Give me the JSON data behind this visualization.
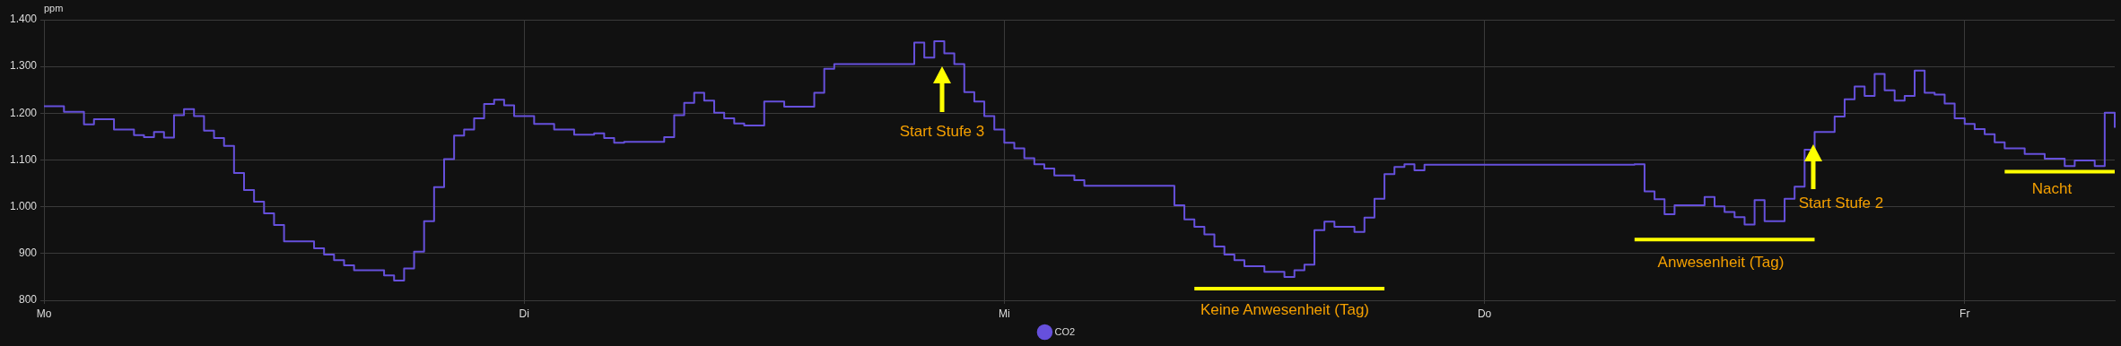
{
  "chart_data": {
    "type": "step",
    "ylabel": "ppm",
    "legend": "bottom",
    "grid": true,
    "categories": [
      "Mo",
      null,
      null,
      null,
      null,
      null,
      null,
      null,
      null,
      null,
      null,
      null,
      null,
      null,
      null,
      null,
      null,
      null,
      null,
      null,
      null,
      null,
      null,
      null,
      null,
      null,
      null,
      null,
      null,
      null,
      null,
      null,
      null,
      null,
      null,
      null,
      null,
      null,
      null,
      null,
      null,
      null,
      null,
      null,
      null,
      null,
      null,
      null,
      "Di",
      null,
      null,
      null,
      null,
      null,
      null,
      null,
      null,
      null,
      null,
      null,
      null,
      null,
      null,
      null,
      null,
      null,
      null,
      null,
      null,
      null,
      null,
      null,
      null,
      null,
      null,
      null,
      null,
      null,
      null,
      null,
      null,
      null,
      null,
      null,
      null,
      null,
      null,
      null,
      null,
      null,
      null,
      null,
      null,
      null,
      null,
      null,
      "Mi",
      null,
      null,
      null,
      null,
      null,
      null,
      null,
      null,
      null,
      null,
      null,
      null,
      null,
      null,
      null,
      null,
      null,
      null,
      null,
      null,
      null,
      null,
      null,
      null,
      null,
      null,
      null,
      null,
      null,
      null,
      null,
      null,
      null,
      null,
      null,
      null,
      null,
      null,
      null,
      null,
      null,
      null,
      null,
      null,
      null,
      null,
      null,
      "Do",
      null,
      null,
      null,
      null,
      null,
      null,
      null,
      null,
      null,
      null,
      null,
      null,
      null,
      null,
      null,
      null,
      null,
      null,
      null,
      null,
      null,
      null,
      null,
      null,
      null,
      null,
      null,
      null,
      null,
      null,
      null,
      null,
      null,
      null,
      null,
      null,
      null,
      null,
      null,
      null,
      null,
      null,
      null,
      null,
      null,
      null,
      null,
      "Fr",
      null,
      null,
      null,
      null,
      null,
      null,
      null,
      null,
      null,
      null,
      null,
      null,
      null,
      null,
      null
    ],
    "ylim": [
      800,
      1400
    ],
    "yticks": [
      {
        "value": 800,
        "label": "800"
      },
      {
        "value": 900,
        "label": "900"
      },
      {
        "value": 1000,
        "label": "1.000"
      },
      {
        "value": 1100,
        "label": "1.100"
      },
      {
        "value": 1200,
        "label": "1.200"
      },
      {
        "value": 1300,
        "label": "1.300"
      },
      {
        "value": 1400,
        "label": "1.400"
      }
    ],
    "annotations": [
      "Start Stufe 3",
      "Keine Anwesenheit (Tag)",
      "Anwesenheit (Tag)",
      "Start Stufe 2",
      "Nacht"
    ],
    "series": [
      {
        "name": "CO2",
        "color": "#6650dc",
        "values": [
          1215,
          1215,
          1203,
          1203,
          1176,
          1187,
          1187,
          1165,
          1165,
          1153,
          1149,
          1160,
          1148,
          1196,
          1209,
          1194,
          1163,
          1147,
          1130,
          1072,
          1036,
          1011,
          986,
          961,
          926,
          926,
          926,
          911,
          898,
          886,
          875,
          864,
          864,
          864,
          853,
          842,
          868,
          904,
          969,
          1042,
          1102,
          1152,
          1165,
          1189,
          1220,
          1229,
          1217,
          1194,
          1194,
          1177,
          1177,
          1165,
          1165,
          1154,
          1154,
          1157,
          1147,
          1137,
          1139,
          1139,
          1139,
          1139,
          1149,
          1196,
          1222,
          1244,
          1227,
          1201,
          1189,
          1178,
          1174,
          1174,
          1225,
          1225,
          1214,
          1214,
          1214,
          1244,
          1295,
          1305,
          1305,
          1305,
          1305,
          1305,
          1305,
          1305,
          1305,
          1351,
          1319,
          1354,
          1328,
          1305,
          1245,
          1225,
          1194,
          1165,
          1137,
          1125,
          1104,
          1091,
          1082,
          1067,
          1067,
          1057,
          1045,
          1045,
          1045,
          1045,
          1045,
          1045,
          1045,
          1045,
          1045,
          1003,
          973,
          957,
          941,
          915,
          898,
          886,
          873,
          873,
          861,
          861,
          850,
          864,
          876,
          950,
          968,
          957,
          957,
          946,
          977,
          1017,
          1070,
          1085,
          1091,
          1078,
          1090,
          1090,
          1090,
          1090,
          1090,
          1090,
          1090,
          1090,
          1090,
          1090,
          1090,
          1090,
          1090,
          1090,
          1090,
          1090,
          1090,
          1090,
          1090,
          1090,
          1090,
          1091,
          1033,
          1016,
          984,
          1003,
          1003,
          1003,
          1021,
          1001,
          989,
          978,
          962,
          1014,
          969,
          969,
          1017,
          1043,
          1122,
          1160,
          1160,
          1193,
          1230,
          1257,
          1237,
          1284,
          1249,
          1227,
          1237,
          1291,
          1244,
          1240,
          1221,
          1189,
          1177,
          1166,
          1155,
          1138,
          1125,
          1125,
          1113,
          1113,
          1103,
          1103,
          1087,
          1099,
          1099,
          1087,
          1201,
          1169
        ]
      },
      {
        "type": "line",
        "color": "#ffff00",
        "values": [
          null,
          null,
          null,
          null,
          null,
          null,
          null,
          null,
          null,
          null,
          null,
          null,
          null,
          null,
          null,
          null,
          null,
          null,
          null,
          null,
          null,
          null,
          null,
          null,
          null,
          null,
          null,
          null,
          null,
          null,
          null,
          null,
          null,
          null,
          null,
          null,
          null,
          null,
          null,
          null,
          null,
          null,
          null,
          null,
          null,
          null,
          null,
          null,
          null,
          null,
          null,
          null,
          null,
          null,
          null,
          null,
          null,
          null,
          null,
          null,
          null,
          null,
          null,
          null,
          null,
          null,
          null,
          null,
          null,
          null,
          null,
          null,
          null,
          null,
          null,
          null,
          null,
          null,
          null,
          null,
          null,
          null,
          null,
          null,
          null,
          null,
          null,
          null,
          null,
          null,
          null,
          null,
          null,
          null,
          null,
          null,
          null,
          null,
          null,
          null,
          null,
          null,
          null,
          null,
          null,
          null,
          null,
          null,
          null,
          null,
          null,
          null,
          null,
          null,
          null,
          825,
          825,
          825,
          825,
          825,
          825,
          825,
          825,
          825,
          825,
          825,
          825,
          825,
          825,
          825,
          825,
          825,
          825,
          825,
          825,
          null,
          null,
          null,
          null,
          null,
          null,
          null,
          null,
          null,
          null,
          null,
          null,
          null,
          null,
          null,
          null,
          null,
          null,
          null,
          null,
          null,
          null,
          null,
          null,
          null,
          null,
          null,
          null,
          null,
          null,
          null,
          null,
          null,
          null,
          null,
          null,
          null,
          null,
          null,
          null,
          null,
          null,
          null,
          null,
          null,
          null,
          null,
          null,
          null,
          null,
          null,
          null,
          null,
          null,
          null,
          null,
          null,
          null,
          null,
          null,
          null,
          null,
          null,
          null,
          null,
          null,
          null,
          null,
          null,
          null,
          null,
          null,
          null
        ]
      },
      {
        "type": "line",
        "color": "#ffff00",
        "values": [
          null,
          null,
          null,
          null,
          null,
          null,
          null,
          null,
          null,
          null,
          null,
          null,
          null,
          null,
          null,
          null,
          null,
          null,
          null,
          null,
          null,
          null,
          null,
          null,
          null,
          null,
          null,
          null,
          null,
          null,
          null,
          null,
          null,
          null,
          null,
          null,
          null,
          null,
          null,
          null,
          null,
          null,
          null,
          null,
          null,
          null,
          null,
          null,
          null,
          null,
          null,
          null,
          null,
          null,
          null,
          null,
          null,
          null,
          null,
          null,
          null,
          null,
          null,
          null,
          null,
          null,
          null,
          null,
          null,
          null,
          null,
          null,
          null,
          null,
          null,
          null,
          null,
          null,
          null,
          null,
          null,
          null,
          null,
          null,
          null,
          null,
          null,
          null,
          null,
          null,
          null,
          null,
          null,
          null,
          null,
          null,
          null,
          null,
          null,
          null,
          null,
          null,
          null,
          null,
          null,
          null,
          null,
          null,
          null,
          null,
          null,
          null,
          null,
          null,
          null,
          null,
          null,
          null,
          null,
          null,
          null,
          null,
          null,
          null,
          null,
          null,
          null,
          null,
          null,
          null,
          null,
          null,
          null,
          null,
          null,
          null,
          null,
          null,
          null,
          null,
          null,
          null,
          null,
          null,
          null,
          null,
          null,
          null,
          null,
          null,
          null,
          null,
          null,
          null,
          null,
          null,
          null,
          null,
          null,
          930,
          930,
          930,
          930,
          930,
          930,
          930,
          930,
          930,
          930,
          930,
          930,
          930,
          930,
          930,
          930,
          930,
          930,
          930,
          null,
          null,
          null,
          null,
          null,
          null,
          null,
          null,
          null,
          null,
          null,
          null,
          null,
          null,
          null,
          null,
          null,
          null,
          null,
          null,
          null,
          null,
          null,
          null,
          null,
          null,
          null,
          null,
          null,
          null
        ]
      },
      {
        "type": "line",
        "color": "#ffff00",
        "values": [
          null,
          null,
          null,
          null,
          null,
          null,
          null,
          null,
          null,
          null,
          null,
          null,
          null,
          null,
          null,
          null,
          null,
          null,
          null,
          null,
          null,
          null,
          null,
          null,
          null,
          null,
          null,
          null,
          null,
          null,
          null,
          null,
          null,
          null,
          null,
          null,
          null,
          null,
          null,
          null,
          null,
          null,
          null,
          null,
          null,
          null,
          null,
          null,
          null,
          null,
          null,
          null,
          null,
          null,
          null,
          null,
          null,
          null,
          null,
          null,
          null,
          null,
          null,
          null,
          null,
          null,
          null,
          null,
          null,
          null,
          null,
          null,
          null,
          null,
          null,
          null,
          null,
          null,
          null,
          null,
          null,
          null,
          null,
          null,
          null,
          null,
          null,
          null,
          null,
          null,
          null,
          null,
          null,
          null,
          null,
          null,
          null,
          null,
          null,
          null,
          null,
          null,
          null,
          null,
          null,
          null,
          null,
          null,
          null,
          null,
          null,
          null,
          null,
          null,
          null,
          null,
          null,
          null,
          null,
          null,
          null,
          null,
          null,
          null,
          null,
          null,
          null,
          null,
          null,
          null,
          null,
          null,
          null,
          null,
          null,
          null,
          null,
          null,
          null,
          null,
          null,
          null,
          null,
          null,
          null,
          null,
          null,
          null,
          null,
          null,
          null,
          null,
          null,
          null,
          null,
          null,
          null,
          null,
          null,
          null,
          null,
          null,
          null,
          null,
          null,
          null,
          null,
          null,
          null,
          null,
          null,
          null,
          null,
          null,
          null,
          null,
          null,
          null,
          null,
          null,
          null,
          null,
          null,
          null,
          null,
          null,
          null,
          null,
          null,
          null,
          null,
          null,
          null,
          null,
          null,
          null,
          1075,
          1075,
          1075,
          1075,
          1075,
          1075,
          1075,
          1075,
          1075,
          1075,
          1075,
          1075
        ]
      }
    ]
  }
}
